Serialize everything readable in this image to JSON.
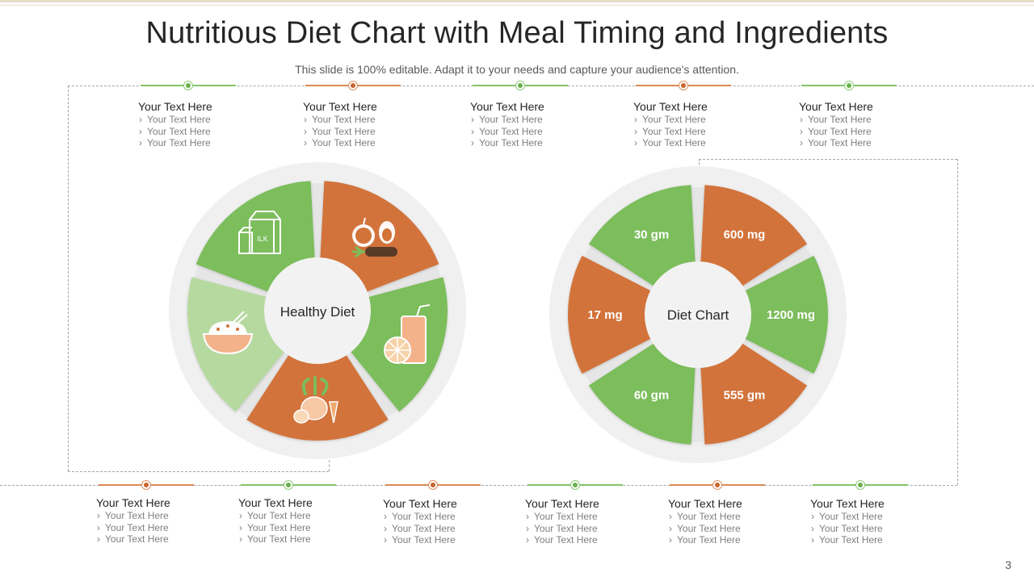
{
  "title": "Nutritious Diet Chart with Meal Timing and Ingredients",
  "subtitle": "This slide is 100% editable. Adapt it to your needs and capture your audience's attention.",
  "page_number": "3",
  "colors": {
    "green": "#7bbd5c",
    "light_green": "#b6d9a0",
    "orange": "#d2733a",
    "ring": "#f0f0f0",
    "hub": "#f2f2f2"
  },
  "top_blocks": [
    {
      "heading": "Your Text Here",
      "items": [
        "Your Text Here",
        "Your Text Here",
        "Your Text Here"
      ]
    },
    {
      "heading": "Your Text Here",
      "items": [
        "Your Text Here",
        "Your Text Here",
        "Your Text Here"
      ]
    },
    {
      "heading": "Your Text Here",
      "items": [
        "Your Text Here",
        "Your Text Here",
        "Your Text Here"
      ]
    },
    {
      "heading": "Your Text Here",
      "items": [
        "Your Text Here",
        "Your Text Here",
        "Your Text Here"
      ]
    },
    {
      "heading": "Your Text Here",
      "items": [
        "Your Text Here",
        "Your Text Here",
        "Your Text Here"
      ]
    }
  ],
  "bottom_blocks": [
    {
      "heading": "Your Text Here",
      "items": [
        "Your Text Here",
        "Your Text Here",
        "Your Text Here"
      ]
    },
    {
      "heading": "Your Text Here",
      "items": [
        "Your Text Here",
        "Your Text Here",
        "Your Text Here"
      ]
    },
    {
      "heading": "Your Text Here",
      "items": [
        "Your Text Here",
        "Your Text Here",
        "Your Text Here"
      ]
    },
    {
      "heading": "Your Text Here",
      "items": [
        "Your Text Here",
        "Your Text Here",
        "Your Text Here"
      ]
    },
    {
      "heading": "Your Text Here",
      "items": [
        "Your Text Here",
        "Your Text Here",
        "Your Text Here"
      ]
    },
    {
      "heading": "Your Text Here",
      "items": [
        "Your Text Here",
        "Your Text Here",
        "Your Text Here"
      ]
    }
  ],
  "healthy_diet": {
    "center_label": "Healthy Diet",
    "segments": [
      {
        "icon": "milk-carton-icon",
        "color": "green"
      },
      {
        "icon": "fruits-vegetables-icon",
        "color": "orange"
      },
      {
        "icon": "juice-lemon-icon",
        "color": "green"
      },
      {
        "icon": "root-vegetables-icon",
        "color": "orange"
      },
      {
        "icon": "rice-bowl-icon",
        "color": "light_green"
      }
    ]
  },
  "diet_chart": {
    "center_label": "Diet Chart",
    "segments": [
      {
        "value": "30 gm",
        "color": "green"
      },
      {
        "value": "600 mg",
        "color": "orange"
      },
      {
        "value": "1200 mg",
        "color": "green"
      },
      {
        "value": "555 gm",
        "color": "orange"
      },
      {
        "value": "60 gm",
        "color": "green"
      },
      {
        "value": "17 mg",
        "color": "orange"
      }
    ]
  }
}
